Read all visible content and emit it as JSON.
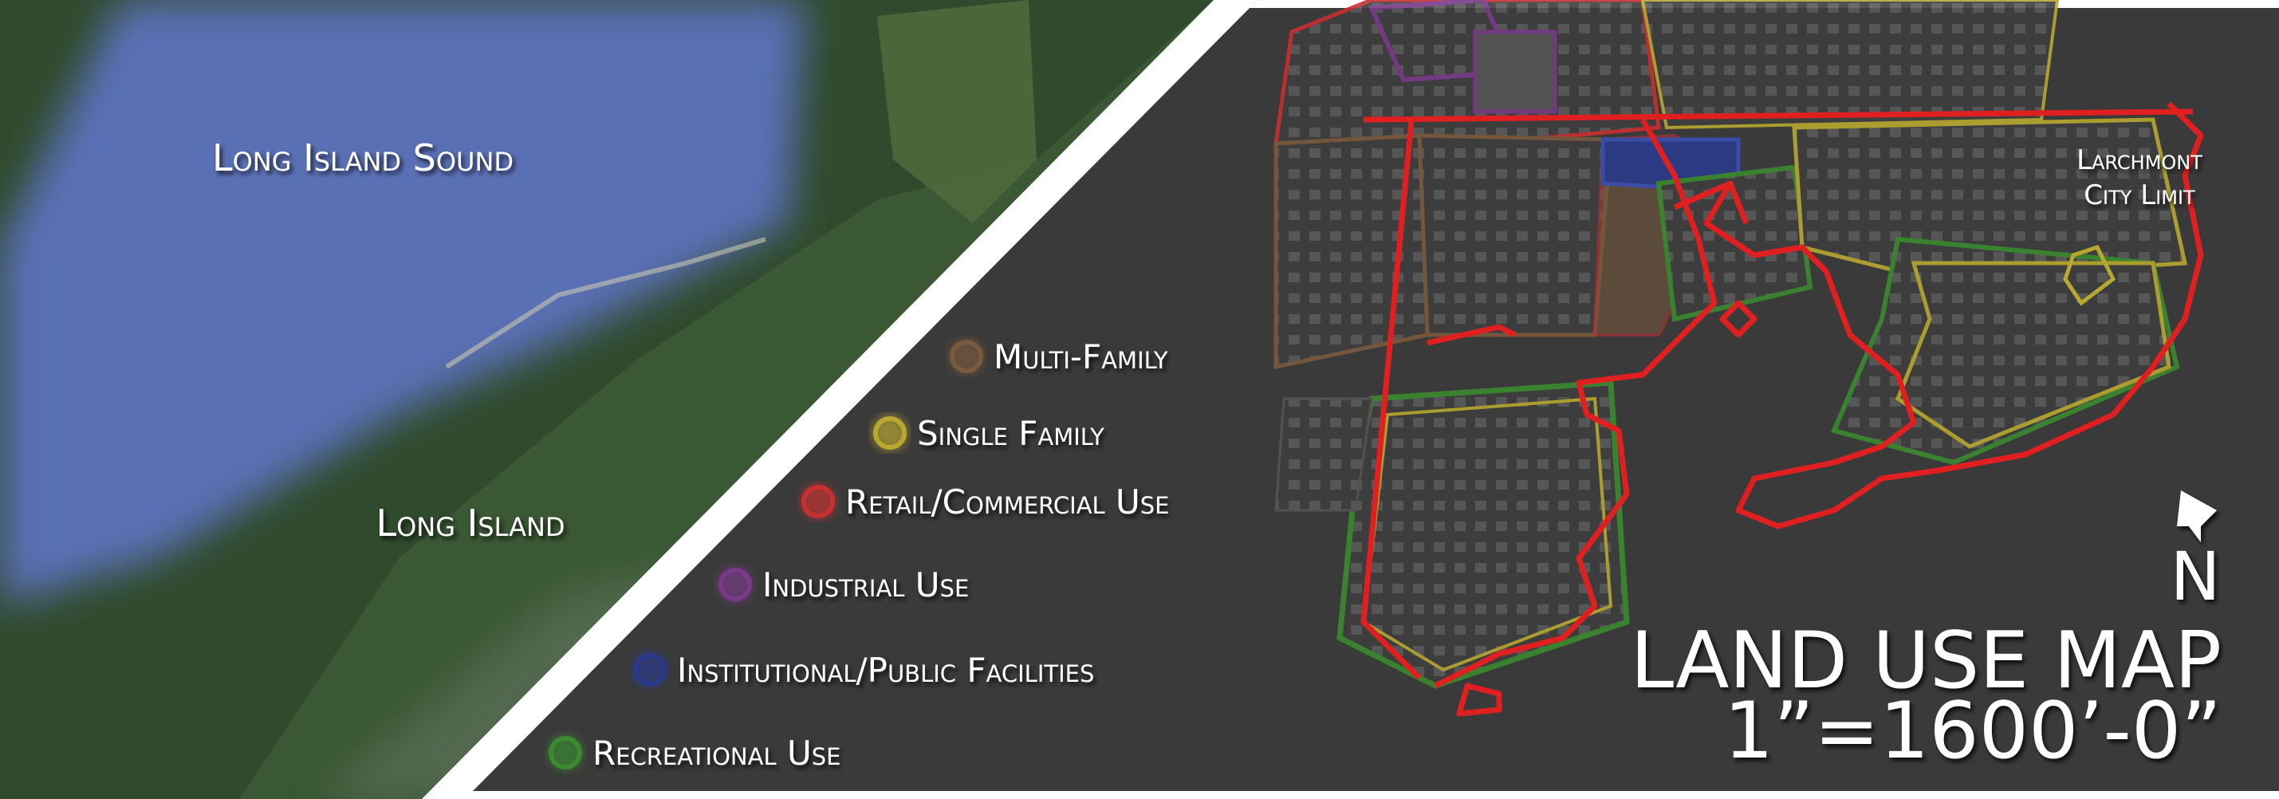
{
  "labels": {
    "sound": "Long Island Sound",
    "island": "Long Island",
    "city_limit": [
      "Larchmont",
      "City Limit"
    ]
  },
  "legend": {
    "items": [
      {
        "label": "Multi-Family",
        "color": "#7a5a3c"
      },
      {
        "label": "Single Family",
        "color": "#b8a830"
      },
      {
        "label": "Retail/Commercial Use",
        "color": "#c83030"
      },
      {
        "label": "Industrial Use",
        "color": "#7a3a8a"
      },
      {
        "label": "Institutional/Public Facilities",
        "color": "#2a3a8a"
      },
      {
        "label": "Recreational Use",
        "color": "#3a8a30"
      }
    ]
  },
  "map": {
    "north": "N",
    "title": "LAND USE MAP",
    "scale": "1”=1600’-0”"
  }
}
